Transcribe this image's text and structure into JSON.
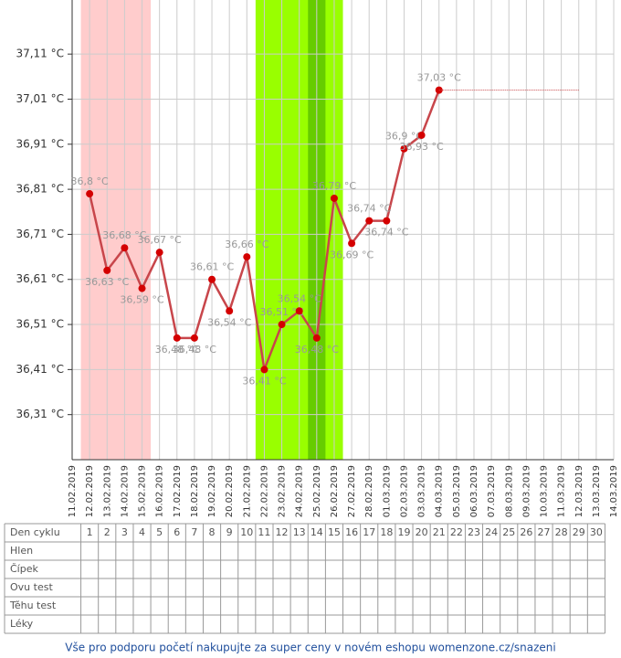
{
  "chart_data": {
    "type": "line",
    "categories": [
      "11.02.2019",
      "12.02.2019",
      "13.02.2019",
      "14.02.2019",
      "15.02.2019",
      "16.02.2019",
      "17.02.2019",
      "18.02.2019",
      "19.02.2019",
      "20.02.2019",
      "21.02.2019",
      "22.02.2019",
      "23.02.2019",
      "24.02.2019",
      "25.02.2019",
      "26.02.2019",
      "27.02.2019",
      "28.02.2019",
      "01.03.2019",
      "02.03.2019",
      "03.03.2019",
      "04.03.2019",
      "05.03.2019",
      "06.03.2019",
      "07.03.2019",
      "08.03.2019",
      "09.03.2019",
      "10.03.2019",
      "11.03.2019",
      "12.03.2019",
      "13.03.2019",
      "14.03.2019"
    ],
    "series": [
      {
        "color": "#c8464b",
        "point_color": "#d40000",
        "values": [
          null,
          36.8,
          36.63,
          36.68,
          36.59,
          36.67,
          36.48,
          36.48,
          36.61,
          36.54,
          36.66,
          36.41,
          36.51,
          36.54,
          36.48,
          36.79,
          36.69,
          36.74,
          36.74,
          36.9,
          36.93,
          37.03,
          null,
          null,
          null,
          null,
          null,
          null,
          null,
          null,
          null,
          null
        ],
        "value_labels": [
          null,
          "36,8 °C",
          "36,63 °C",
          "36,68 °C",
          "36,59 °C",
          "36,67 °C",
          "36,48 °C",
          "36,48 °C",
          "36,61 °C",
          "36,54 °C",
          "36,66 °C",
          "36,41 °C",
          "36,51 °C",
          "36,54 °C",
          "36,48 °C",
          "36,79 °C",
          "36,69 °C",
          "36,74 °C",
          "36,74 °C",
          "36,9 °C",
          "36,93 °C",
          "37,03 °C",
          null,
          null,
          null,
          null,
          null,
          null,
          null,
          null,
          null,
          null
        ]
      },
      {
        "color": "#c8464b",
        "dashed": true,
        "values": [
          null,
          null,
          null,
          null,
          null,
          null,
          null,
          null,
          null,
          null,
          null,
          null,
          null,
          null,
          null,
          null,
          null,
          null,
          null,
          null,
          null,
          37.03,
          37.03,
          37.03,
          37.03,
          37.03,
          37.03,
          37.03,
          37.03,
          37.03,
          null,
          null
        ]
      }
    ],
    "ylim": [
      36.21,
      37.23
    ],
    "yticks": [
      {
        "value": 36.31,
        "label": "36,31 °C"
      },
      {
        "value": 36.41,
        "label": "36,41 °C"
      },
      {
        "value": 36.51,
        "label": "36,51 °C"
      },
      {
        "value": 36.61,
        "label": "36,61 °C"
      },
      {
        "value": 36.71,
        "label": "36,71 °C"
      },
      {
        "value": 36.81,
        "label": "36,81 °C"
      },
      {
        "value": 36.91,
        "label": "36,91 °C"
      },
      {
        "value": 37.01,
        "label": "37,01 °C"
      },
      {
        "value": 37.11,
        "label": "37,11 °C"
      }
    ],
    "grid": true,
    "bands": [
      {
        "from": "12.02.2019",
        "to": "15.02.2019",
        "color": "#ffcccc"
      },
      {
        "from": "22.02.2019",
        "to": "26.02.2019",
        "color": "#99ff00"
      },
      {
        "from": "25.02.2019",
        "to": "25.02.2019",
        "color": "#66cc00"
      }
    ]
  },
  "cycle_table": {
    "row_labels": [
      "Den cyklu",
      "Hlen",
      "Čípek",
      "Ovu test",
      "Těhu test",
      "Léky"
    ],
    "days": [
      1,
      2,
      3,
      4,
      5,
      6,
      7,
      8,
      9,
      10,
      11,
      12,
      13,
      14,
      15,
      16,
      17,
      18,
      19,
      20,
      21,
      22,
      23,
      24,
      25,
      26,
      27,
      28,
      29,
      30
    ]
  },
  "footer": "Vše pro podporu početí nakupujte za super ceny v novém eshopu womenzone.cz/snazeni"
}
